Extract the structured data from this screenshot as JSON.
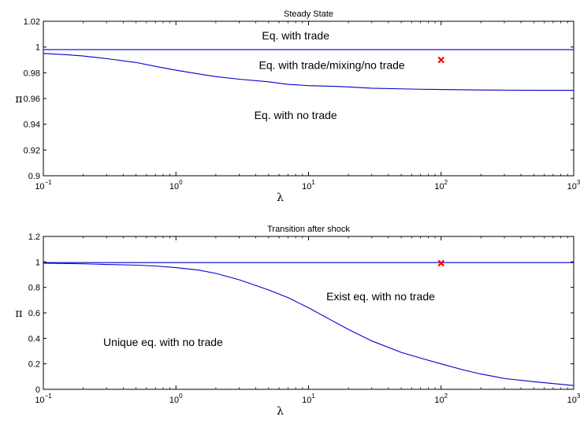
{
  "chart_data": [
    {
      "type": "line",
      "title": "Steady State",
      "xlabel": "λ",
      "ylabel": "π",
      "xscale": "log",
      "xlim": [
        0.1,
        1000
      ],
      "ylim": [
        0.9,
        1.02
      ],
      "yticks": [
        "0.9",
        "0.92",
        "0.94",
        "0.96",
        "0.98",
        "1",
        "1.02"
      ],
      "xticks": [
        {
          "base": "10",
          "exp": "−1"
        },
        {
          "base": "10",
          "exp": "0"
        },
        {
          "base": "10",
          "exp": "1"
        },
        {
          "base": "10",
          "exp": "2"
        },
        {
          "base": "10",
          "exp": "3"
        }
      ],
      "series": [
        {
          "color": "#0000cc",
          "x": [
            0.1,
            1000
          ],
          "y": [
            0.998,
            0.998
          ]
        },
        {
          "color": "#0000cc",
          "x": [
            0.1,
            0.15,
            0.2,
            0.3,
            0.5,
            0.7,
            1,
            1.5,
            2,
            3,
            5,
            7,
            10,
            15,
            20,
            30,
            50,
            70,
            100,
            150,
            200,
            300,
            500,
            700,
            1000
          ],
          "y": [
            0.995,
            0.994,
            0.993,
            0.991,
            0.988,
            0.985,
            0.982,
            0.979,
            0.977,
            0.975,
            0.973,
            0.971,
            0.97,
            0.9695,
            0.969,
            0.968,
            0.9675,
            0.9672,
            0.967,
            0.9668,
            0.9666,
            0.9665,
            0.9664,
            0.9664,
            0.9664
          ]
        }
      ],
      "markers": [
        {
          "x": 100,
          "y": 0.99,
          "symbol": "x",
          "color": "#ff0000"
        }
      ],
      "annotations": [
        {
          "text": "Eq. with trade",
          "x": 8,
          "y": 1.006
        },
        {
          "text": "Eq. with trade/mixing/no trade",
          "x": 15,
          "y": 0.983
        },
        {
          "text": "Eq. with no trade",
          "x": 8,
          "y": 0.944
        }
      ]
    },
    {
      "type": "line",
      "title": "Transition after shock",
      "xlabel": "λ",
      "ylabel": "π",
      "xscale": "log",
      "xlim": [
        0.1,
        1000
      ],
      "ylim": [
        0,
        1.2
      ],
      "yticks": [
        "0",
        "0.2",
        "0.4",
        "0.6",
        "0.8",
        "1",
        "1.2"
      ],
      "xticks": [
        {
          "base": "10",
          "exp": "−1"
        },
        {
          "base": "10",
          "exp": "0"
        },
        {
          "base": "10",
          "exp": "1"
        },
        {
          "base": "10",
          "exp": "2"
        },
        {
          "base": "10",
          "exp": "3"
        }
      ],
      "series": [
        {
          "color": "#0000cc",
          "x": [
            0.1,
            1000
          ],
          "y": [
            0.995,
            0.995
          ]
        },
        {
          "color": "#0000cc",
          "x": [
            0.1,
            0.2,
            0.3,
            0.5,
            0.7,
            1,
            1.5,
            2,
            3,
            5,
            7,
            10,
            15,
            20,
            30,
            50,
            70,
            100,
            150,
            200,
            300,
            500,
            700,
            1000
          ],
          "y": [
            0.99,
            0.985,
            0.98,
            0.975,
            0.968,
            0.955,
            0.935,
            0.91,
            0.86,
            0.78,
            0.72,
            0.64,
            0.54,
            0.47,
            0.38,
            0.29,
            0.245,
            0.2,
            0.15,
            0.12,
            0.085,
            0.06,
            0.045,
            0.03
          ]
        }
      ],
      "markers": [
        {
          "x": 100,
          "y": 0.99,
          "symbol": "x",
          "color": "#ff0000"
        }
      ],
      "annotations": [
        {
          "text": "Exist eq. with no trade",
          "x": 35,
          "y": 0.7
        },
        {
          "text": "Unique eq. with no trade",
          "x": 0.8,
          "y": 0.34
        }
      ]
    }
  ]
}
